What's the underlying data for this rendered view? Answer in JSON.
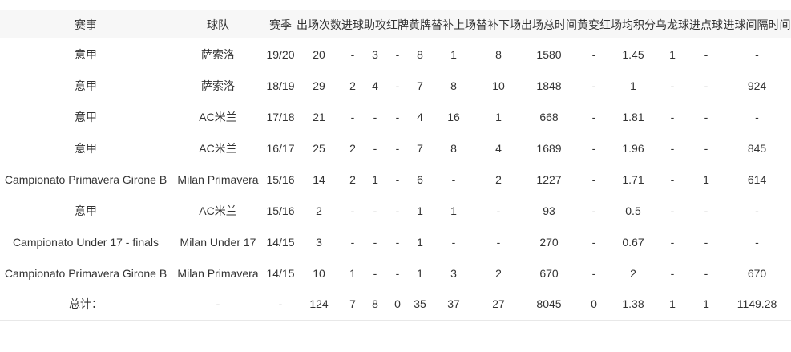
{
  "table": {
    "column_keys": [
      "competition",
      "team",
      "season",
      "appearances",
      "goals",
      "assists",
      "red-cards",
      "yellow-cards",
      "sub-on",
      "sub-off",
      "total-minutes",
      "second-yellow",
      "avg-points",
      "own-goals",
      "penalty-goals",
      "goal-interval"
    ],
    "headers": [
      "赛事",
      "球队",
      "赛季",
      "出场次数",
      "进球",
      "助攻",
      "红牌",
      "黄牌",
      "替补上场",
      "替补下场",
      "出场总时间",
      "黄变红",
      "场均积分",
      "乌龙球",
      "进点球",
      "进球间隔时间"
    ],
    "rows": [
      [
        "意甲",
        "萨索洛",
        "19/20",
        "20",
        "-",
        "3",
        "-",
        "8",
        "1",
        "8",
        "1580",
        "-",
        "1.45",
        "1",
        "-",
        "-"
      ],
      [
        "意甲",
        "萨索洛",
        "18/19",
        "29",
        "2",
        "4",
        "-",
        "7",
        "8",
        "10",
        "1848",
        "-",
        "1",
        "-",
        "-",
        "924"
      ],
      [
        "意甲",
        "AC米兰",
        "17/18",
        "21",
        "-",
        "-",
        "-",
        "4",
        "16",
        "1",
        "668",
        "-",
        "1.81",
        "-",
        "-",
        "-"
      ],
      [
        "意甲",
        "AC米兰",
        "16/17",
        "25",
        "2",
        "-",
        "-",
        "7",
        "8",
        "4",
        "1689",
        "-",
        "1.96",
        "-",
        "-",
        "845"
      ],
      [
        "Campionato Primavera Girone B",
        "Milan Primavera",
        "15/16",
        "14",
        "2",
        "1",
        "-",
        "6",
        "-",
        "2",
        "1227",
        "-",
        "1.71",
        "-",
        "1",
        "614"
      ],
      [
        "意甲",
        "AC米兰",
        "15/16",
        "2",
        "-",
        "-",
        "-",
        "1",
        "1",
        "-",
        "93",
        "-",
        "0.5",
        "-",
        "-",
        "-"
      ],
      [
        "Campionato Under 17 - finals",
        "Milan Under 17",
        "14/15",
        "3",
        "-",
        "-",
        "-",
        "1",
        "-",
        "-",
        "270",
        "-",
        "0.67",
        "-",
        "-",
        "-"
      ],
      [
        "Campionato Primavera Girone B",
        "Milan Primavera",
        "14/15",
        "10",
        "1",
        "-",
        "-",
        "1",
        "3",
        "2",
        "670",
        "-",
        "2",
        "-",
        "-",
        "670"
      ]
    ],
    "totals": [
      "总计：",
      "-",
      "-",
      "124",
      "7",
      "8",
      "0",
      "35",
      "37",
      "27",
      "8045",
      "0",
      "1.38",
      "1",
      "1",
      "1149.28"
    ]
  },
  "colors": {
    "header_background": "#f7f7f7",
    "text": "#333333",
    "bottom_border": "#e8e8e8"
  }
}
